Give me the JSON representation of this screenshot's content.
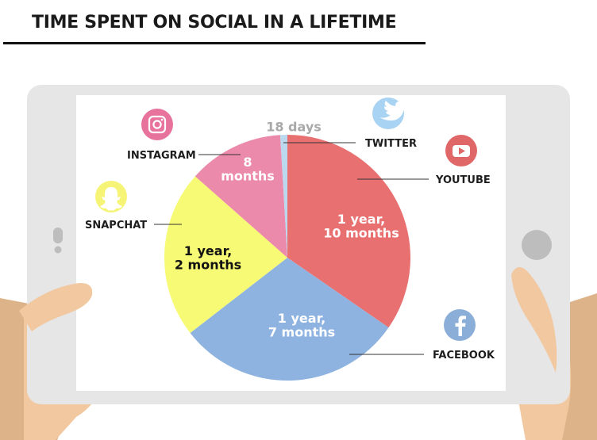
{
  "title": "TIME SPENT ON SOCIAL IN A LIFETIME",
  "colors": {
    "youtube": "#e87070",
    "facebook": "#8fb3e0",
    "snapchat": "#f7fa74",
    "instagram": "#ec8aab",
    "twitter": "#bcd8ee",
    "twitter_icon": "#a8d3f2",
    "youtube_icon": "#e06767",
    "facebook_icon": "#8aaed8",
    "snapchat_icon": "#f6f476",
    "instagram_icon": "#e7739d",
    "tablet": "#e6e6e6",
    "skin": "#f1c8a0",
    "sleeve": "#ddb48a"
  },
  "chart_data": {
    "type": "pie",
    "title": "TIME SPENT ON SOCIAL IN A LIFETIME",
    "unit": "days",
    "slices": [
      {
        "name": "YOUTUBE",
        "value": 670,
        "label_lines": [
          "1 year,",
          "10 months"
        ],
        "color": "#e87070",
        "text_color": "#ffffff",
        "icon": "youtube-icon"
      },
      {
        "name": "FACEBOOK",
        "value": 578,
        "label_lines": [
          "1 year,",
          "7 months"
        ],
        "color": "#8fb3e0",
        "text_color": "#ffffff",
        "icon": "facebook-icon"
      },
      {
        "name": "SNAPCHAT",
        "value": 426,
        "label_lines": [
          "1 year,",
          "2 months"
        ],
        "color": "#f7fa74",
        "text_color": "#111111",
        "icon": "snapchat-icon"
      },
      {
        "name": "INSTAGRAM",
        "value": 243,
        "label_lines": [
          "8",
          "months"
        ],
        "color": "#ec8aab",
        "text_color": "#ffffff",
        "icon": "instagram-icon"
      },
      {
        "name": "TWITTER",
        "value": 18,
        "label_lines": [
          "18 days"
        ],
        "color": "#bcd8ee",
        "text_color": "#a9a9a9",
        "icon": "twitter-icon"
      }
    ]
  }
}
